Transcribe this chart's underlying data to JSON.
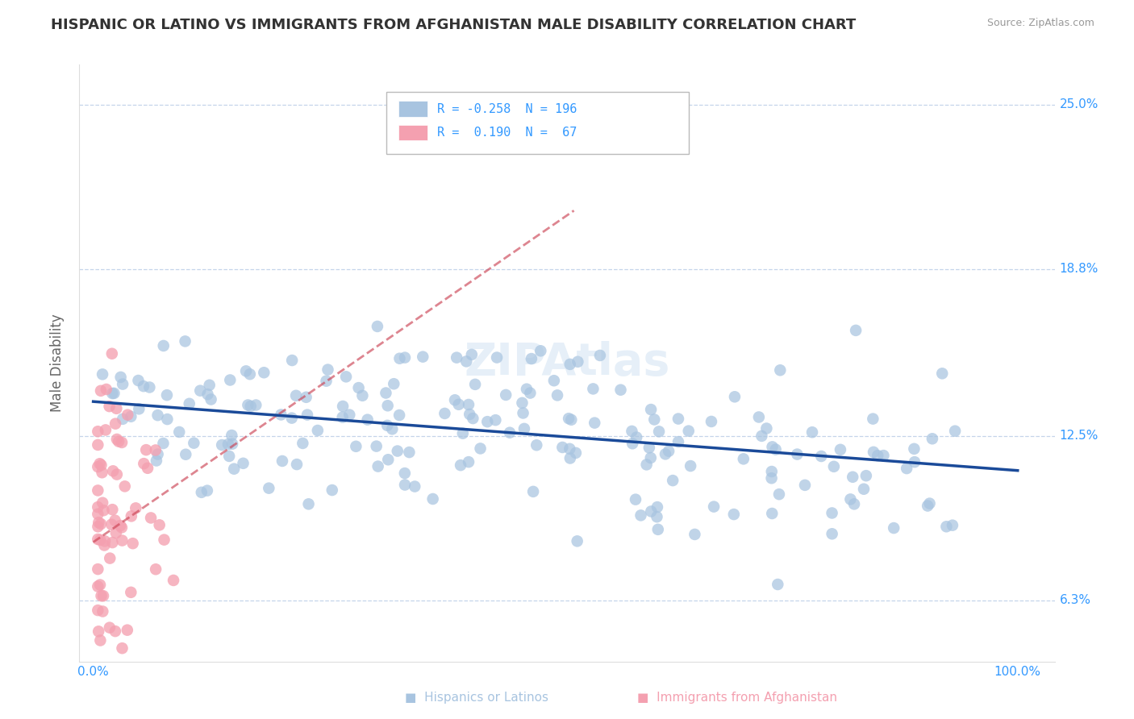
{
  "title": "HISPANIC OR LATINO VS IMMIGRANTS FROM AFGHANISTAN MALE DISABILITY CORRELATION CHART",
  "source": "Source: ZipAtlas.com",
  "ylabel": "Male Disability",
  "blue_R": -0.258,
  "blue_N": 196,
  "pink_R": 0.19,
  "pink_N": 67,
  "blue_color": "#a8c4e0",
  "pink_color": "#f4a0b0",
  "blue_line_color": "#1a4a99",
  "pink_line_color": "#cc4455",
  "axis_color": "#3399ff",
  "title_color": "#333333",
  "yticks": [
    0.063,
    0.125,
    0.188,
    0.25
  ],
  "ytick_labels": [
    "6.3%",
    "12.5%",
    "18.8%",
    "25.0%"
  ],
  "xtick_vals": [
    0.0,
    0.2,
    0.4,
    0.6,
    0.8,
    1.0
  ],
  "xtick_labels": [
    "0.0%",
    "",
    "",
    "",
    "",
    "100.0%"
  ],
  "xlim": [
    -0.015,
    1.04
  ],
  "ylim": [
    0.04,
    0.265
  ],
  "blue_line_x": [
    0.0,
    1.0
  ],
  "blue_line_y": [
    0.138,
    0.112
  ],
  "pink_line_x": [
    0.0,
    0.52
  ],
  "pink_line_y": [
    0.085,
    0.21
  ],
  "legend_blue_label": "R = -0.258  N = 196",
  "legend_pink_label": "R =  0.190  N =  67",
  "bottom_label_blue": "Hispanics or Latinos",
  "bottom_label_pink": "Immigrants from Afghanistan",
  "watermark": "ZIPAtlas"
}
